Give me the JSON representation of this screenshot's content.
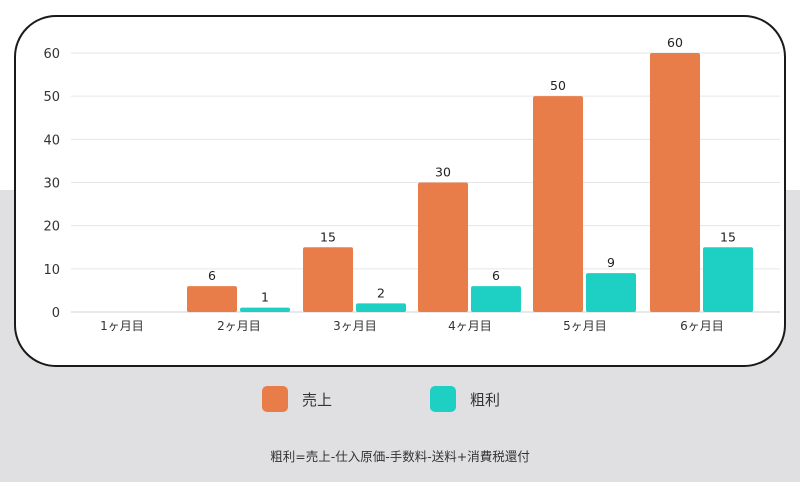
{
  "chart_data": {
    "type": "bar",
    "categories": [
      "1ヶ月目",
      "2ヶ月目",
      "3ヶ月目",
      "4ヶ月目",
      "5ヶ月目",
      "6ヶ月目"
    ],
    "series": [
      {
        "name": "売上",
        "color": "#e97d4a",
        "values": [
          0,
          6,
          15,
          30,
          50,
          60
        ]
      },
      {
        "name": "粗利",
        "color": "#1ecfc4",
        "values": [
          0,
          1,
          2,
          6,
          9,
          15
        ]
      }
    ],
    "yticks": [
      0,
      10,
      20,
      30,
      40,
      50,
      60
    ],
    "ylim": [
      0,
      60
    ],
    "grid": true,
    "legend_position": "bottom",
    "note": "粗利=売上-仕入原価-手数料-送料+消費税還付"
  }
}
